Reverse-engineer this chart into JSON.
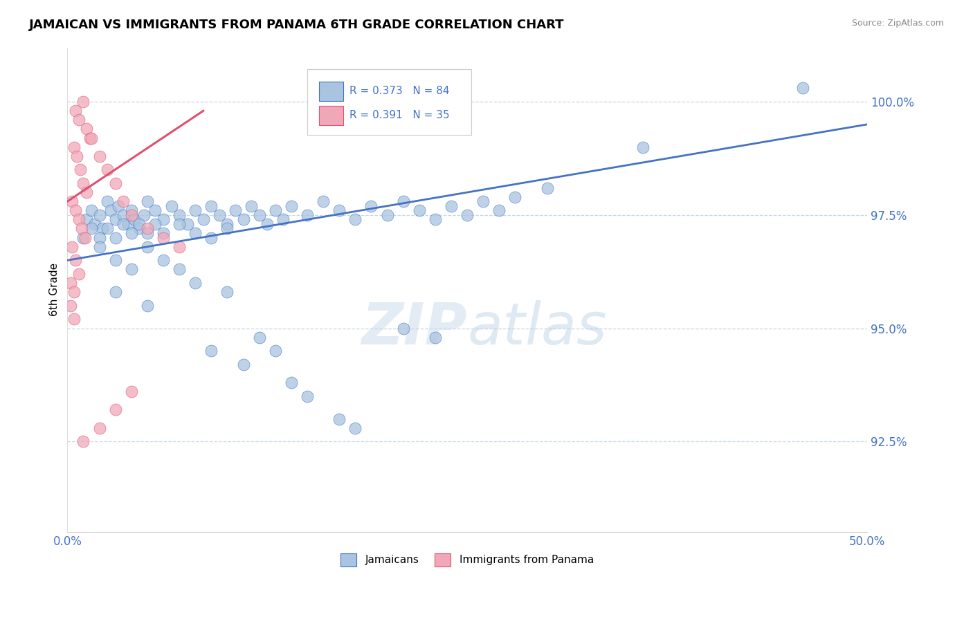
{
  "title": "JAMAICAN VS IMMIGRANTS FROM PANAMA 6TH GRADE CORRELATION CHART",
  "source": "Source: ZipAtlas.com",
  "ylabel": "6th Grade",
  "yticks": [
    92.5,
    95.0,
    97.5,
    100.0
  ],
  "ytick_labels": [
    "92.5%",
    "95.0%",
    "97.5%",
    "100.0%"
  ],
  "xlim": [
    0.0,
    50.0
  ],
  "ylim": [
    90.5,
    101.2
  ],
  "legend_blue_r": "R = 0.373",
  "legend_blue_n": "N = 84",
  "legend_pink_r": "R = 0.391",
  "legend_pink_n": "N = 35",
  "legend_label_blue": "Jamaicans",
  "legend_label_pink": "Immigrants from Panama",
  "blue_color": "#a8c4e0",
  "pink_color": "#f0a8b8",
  "trendline_blue_color": "#4472c4",
  "trendline_pink_color": "#e05070",
  "watermark_zip": "ZIP",
  "watermark_atlas": "atlas",
  "blue_scatter": [
    [
      1.2,
      97.4
    ],
    [
      1.5,
      97.6
    ],
    [
      1.7,
      97.3
    ],
    [
      2.0,
      97.5
    ],
    [
      2.2,
      97.2
    ],
    [
      2.5,
      97.8
    ],
    [
      2.7,
      97.6
    ],
    [
      3.0,
      97.4
    ],
    [
      3.2,
      97.7
    ],
    [
      3.5,
      97.5
    ],
    [
      3.8,
      97.3
    ],
    [
      4.0,
      97.6
    ],
    [
      4.2,
      97.4
    ],
    [
      4.5,
      97.2
    ],
    [
      4.8,
      97.5
    ],
    [
      5.0,
      97.8
    ],
    [
      5.5,
      97.6
    ],
    [
      6.0,
      97.4
    ],
    [
      6.5,
      97.7
    ],
    [
      7.0,
      97.5
    ],
    [
      7.5,
      97.3
    ],
    [
      8.0,
      97.6
    ],
    [
      8.5,
      97.4
    ],
    [
      9.0,
      97.7
    ],
    [
      9.5,
      97.5
    ],
    [
      10.0,
      97.3
    ],
    [
      10.5,
      97.6
    ],
    [
      11.0,
      97.4
    ],
    [
      11.5,
      97.7
    ],
    [
      12.0,
      97.5
    ],
    [
      12.5,
      97.3
    ],
    [
      13.0,
      97.6
    ],
    [
      13.5,
      97.4
    ],
    [
      14.0,
      97.7
    ],
    [
      15.0,
      97.5
    ],
    [
      16.0,
      97.8
    ],
    [
      17.0,
      97.6
    ],
    [
      18.0,
      97.4
    ],
    [
      19.0,
      97.7
    ],
    [
      20.0,
      97.5
    ],
    [
      21.0,
      97.8
    ],
    [
      22.0,
      97.6
    ],
    [
      23.0,
      97.4
    ],
    [
      24.0,
      97.7
    ],
    [
      25.0,
      97.5
    ],
    [
      26.0,
      97.8
    ],
    [
      27.0,
      97.6
    ],
    [
      28.0,
      97.9
    ],
    [
      30.0,
      98.1
    ],
    [
      1.0,
      97.0
    ],
    [
      1.5,
      97.2
    ],
    [
      2.0,
      97.0
    ],
    [
      2.5,
      97.2
    ],
    [
      3.0,
      97.0
    ],
    [
      3.5,
      97.3
    ],
    [
      4.0,
      97.1
    ],
    [
      4.5,
      97.3
    ],
    [
      5.0,
      97.1
    ],
    [
      5.5,
      97.3
    ],
    [
      6.0,
      97.1
    ],
    [
      7.0,
      97.3
    ],
    [
      8.0,
      97.1
    ],
    [
      9.0,
      97.0
    ],
    [
      10.0,
      97.2
    ],
    [
      2.0,
      96.8
    ],
    [
      3.0,
      96.5
    ],
    [
      4.0,
      96.3
    ],
    [
      5.0,
      96.8
    ],
    [
      6.0,
      96.5
    ],
    [
      7.0,
      96.3
    ],
    [
      8.0,
      96.0
    ],
    [
      10.0,
      95.8
    ],
    [
      12.0,
      94.8
    ],
    [
      13.0,
      94.5
    ],
    [
      14.0,
      93.8
    ],
    [
      15.0,
      93.5
    ],
    [
      17.0,
      93.0
    ],
    [
      18.0,
      92.8
    ],
    [
      21.0,
      95.0
    ],
    [
      23.0,
      94.8
    ],
    [
      36.0,
      99.0
    ],
    [
      46.0,
      100.3
    ],
    [
      3.0,
      95.8
    ],
    [
      5.0,
      95.5
    ],
    [
      9.0,
      94.5
    ],
    [
      11.0,
      94.2
    ]
  ],
  "pink_scatter": [
    [
      0.5,
      99.8
    ],
    [
      0.7,
      99.6
    ],
    [
      1.0,
      100.0
    ],
    [
      1.2,
      99.4
    ],
    [
      1.4,
      99.2
    ],
    [
      0.4,
      99.0
    ],
    [
      0.6,
      98.8
    ],
    [
      0.8,
      98.5
    ],
    [
      1.0,
      98.2
    ],
    [
      1.2,
      98.0
    ],
    [
      0.3,
      97.8
    ],
    [
      0.5,
      97.6
    ],
    [
      0.7,
      97.4
    ],
    [
      0.9,
      97.2
    ],
    [
      1.1,
      97.0
    ],
    [
      0.3,
      96.8
    ],
    [
      0.5,
      96.5
    ],
    [
      0.7,
      96.2
    ],
    [
      0.2,
      96.0
    ],
    [
      0.4,
      95.8
    ],
    [
      1.5,
      99.2
    ],
    [
      2.0,
      98.8
    ],
    [
      2.5,
      98.5
    ],
    [
      3.0,
      98.2
    ],
    [
      3.5,
      97.8
    ],
    [
      4.0,
      97.5
    ],
    [
      5.0,
      97.2
    ],
    [
      6.0,
      97.0
    ],
    [
      7.0,
      96.8
    ],
    [
      0.2,
      95.5
    ],
    [
      0.4,
      95.2
    ],
    [
      1.0,
      92.5
    ],
    [
      2.0,
      92.8
    ],
    [
      3.0,
      93.2
    ],
    [
      4.0,
      93.6
    ]
  ],
  "blue_trend_x": [
    0.0,
    50.0
  ],
  "blue_trend_y": [
    96.5,
    99.5
  ],
  "pink_trend_x": [
    0.0,
    8.5
  ],
  "pink_trend_y": [
    97.8,
    99.8
  ]
}
